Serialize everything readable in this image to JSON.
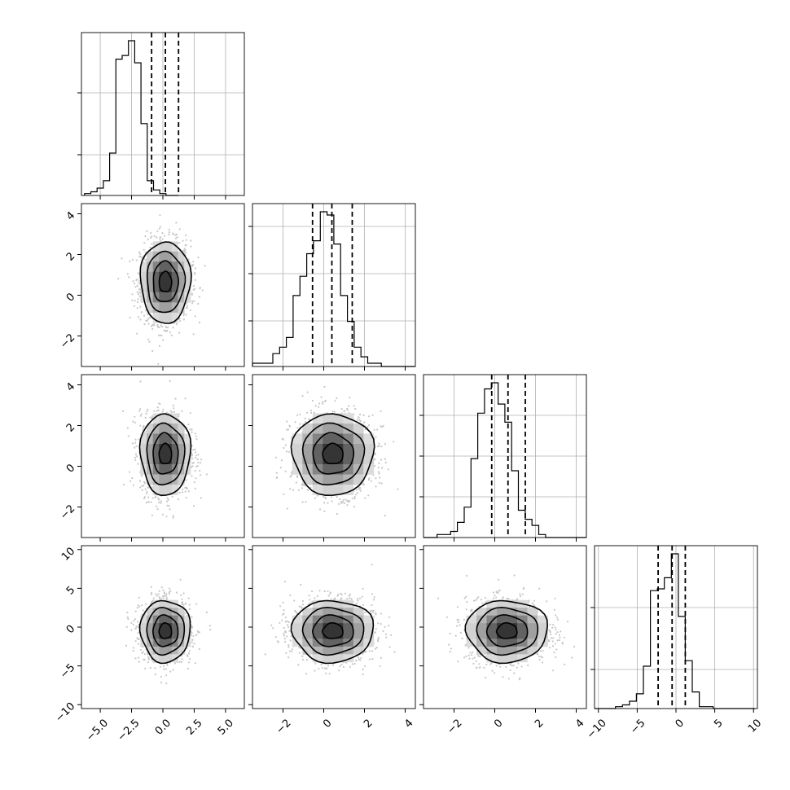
{
  "chart_data": {
    "type": "corner",
    "grid": true,
    "dimensions": [
      {
        "id": "p0",
        "range": [
          -6.5,
          6.5
        ],
        "ticks": [
          -5.0,
          -2.5,
          0.0,
          2.5,
          5.0
        ],
        "tick_labels": [
          "−5.0",
          "−2.5",
          "0.0",
          "2.5",
          "5.0"
        ],
        "quantiles": [
          -0.9,
          0.2,
          1.25
        ],
        "histogram": {
          "x0": -6.25,
          "bin": 0.5,
          "counts": [
            1,
            2,
            4,
            8,
            23,
            74,
            76,
            84,
            72,
            39,
            8,
            3,
            1,
            0,
            0
          ]
        },
        "diag_yticks": [
          0.25,
          0.63
        ]
      },
      {
        "id": "p1",
        "range": [
          -3.5,
          4.5
        ],
        "ticks": [
          -2,
          0,
          2,
          4
        ],
        "tick_labels": [
          "−2",
          "0",
          "2",
          "4"
        ],
        "quantiles": [
          -0.55,
          0.4,
          1.4
        ],
        "histogram": {
          "x0": -3.5,
          "bin": 0.333,
          "counts": [
            1,
            1,
            1,
            4,
            6,
            9,
            22,
            28,
            35,
            39,
            48,
            47,
            38,
            22,
            14,
            6,
            3,
            1,
            1,
            0,
            0,
            0,
            0,
            0
          ]
        },
        "diag_yticks": [
          0.28,
          0.57,
          0.86
        ]
      },
      {
        "id": "p2",
        "range": [
          -3.5,
          4.5
        ],
        "ticks": [
          -2,
          0,
          2,
          4
        ],
        "tick_labels": [
          "−2",
          "0",
          "2",
          "4"
        ],
        "quantiles": [
          -0.15,
          0.65,
          1.5
        ],
        "histogram": {
          "x0": -3.5,
          "bin": 0.333,
          "counts": [
            0,
            0,
            1,
            1,
            2,
            5,
            10,
            26,
            41,
            49,
            51,
            44,
            38,
            22,
            9,
            6,
            4,
            1,
            0,
            0,
            0,
            0,
            0,
            0
          ]
        },
        "diag_yticks": [
          0.25,
          0.5,
          0.75
        ]
      },
      {
        "id": "p3",
        "range": [
          -10.5,
          10.5
        ],
        "ticks": [
          -10,
          -5,
          0,
          5,
          10
        ],
        "tick_labels": [
          "−10",
          "−5",
          "0",
          "5",
          "10"
        ],
        "quantiles": [
          -2.3,
          -0.5,
          1.2
        ],
        "histogram": {
          "x0": -10.5,
          "bin": 0.9,
          "counts": [
            0,
            0,
            0,
            1,
            2,
            4,
            8,
            23,
            64,
            65,
            71,
            84,
            50,
            26,
            9,
            1,
            1,
            0,
            0,
            0,
            0,
            0,
            0
          ]
        },
        "diag_yticks": [
          0.24,
          0.62
        ]
      }
    ],
    "pairs": [
      {
        "row": 1,
        "col": 0,
        "cx": 0.2,
        "cy": 0.65,
        "sx": 1.0,
        "sy": 1.0
      },
      {
        "row": 2,
        "col": 0,
        "cx": 0.2,
        "cy": 0.6,
        "sx": 1.0,
        "sy": 1.0
      },
      {
        "row": 2,
        "col": 1,
        "cx": 0.45,
        "cy": 0.6,
        "sx": 1.0,
        "sy": 1.0
      },
      {
        "row": 3,
        "col": 0,
        "cx": 0.2,
        "cy": -0.5,
        "sx": 1.0,
        "sy": 2.0
      },
      {
        "row": 3,
        "col": 1,
        "cx": 0.45,
        "cy": -0.5,
        "sx": 1.0,
        "sy": 2.0
      },
      {
        "row": 3,
        "col": 2,
        "cx": 0.6,
        "cy": -0.5,
        "sx": 1.0,
        "sy": 2.0
      }
    ],
    "contour_sigmas": [
      0.5,
      1.0,
      1.5,
      2.0
    ]
  },
  "colors": {
    "line": "#000000",
    "grid": "#b0b0b0",
    "scatter": "#9a9a9a"
  }
}
